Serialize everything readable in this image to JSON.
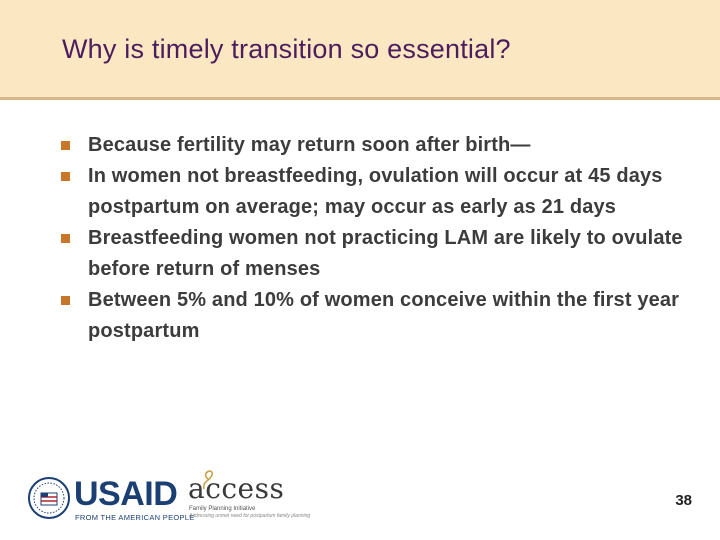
{
  "slide": {
    "title": "Why is timely transition so essential?",
    "bullets": [
      "Because fertility may return soon after birth—",
      "In women not breastfeeding, ovulation will occur at 45 days postpartum on average; may occur as early as 21 days",
      "Breastfeeding women not practicing LAM are likely to ovulate before return of menses",
      "Between 5% and 10% of women conceive within the first year postpartum"
    ],
    "page_number": "38"
  },
  "footer": {
    "usaid_word": "USAID",
    "usaid_tagline": "FROM THE AMERICAN PEOPLE",
    "access_word": "access",
    "access_sub1": "Family Planning Initiative",
    "access_sub2": "Addressing unmet need for postpartum family planning"
  },
  "colors": {
    "title_band": "#fbe7c2",
    "title_text": "#4b1d5e",
    "bullet_mark": "#c8772a",
    "body_text": "#3c3c3c"
  }
}
